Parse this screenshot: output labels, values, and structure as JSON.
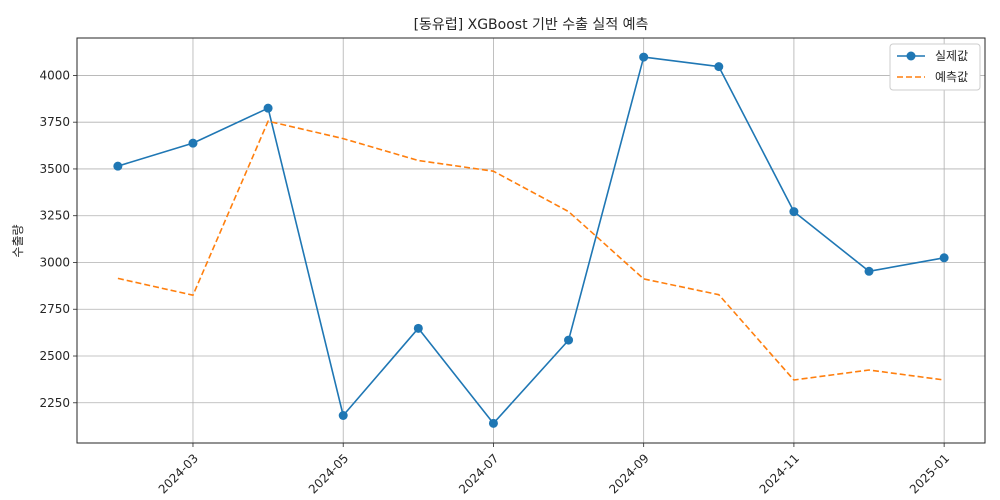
{
  "chart_data": {
    "type": "line",
    "title": "[동유럽] XGBoost 기반 수출 실적 예측",
    "xlabel": "",
    "ylabel": "수출량",
    "x": [
      "2024-02",
      "2024-03",
      "2024-04",
      "2024-05",
      "2024-06",
      "2024-07",
      "2024-08",
      "2024-09",
      "2024-10",
      "2024-11",
      "2024-12",
      "2025-01"
    ],
    "x_ticks": [
      "2024-03",
      "2024-05",
      "2024-07",
      "2024-09",
      "2024-11",
      "2025-01"
    ],
    "y_ticks": [
      2250,
      2500,
      2750,
      3000,
      3250,
      3500,
      3750,
      4000
    ],
    "ylim": [
      2035,
      4200
    ],
    "grid": true,
    "legend_position": "top-right",
    "series": [
      {
        "name": "실제값",
        "style": "solid-with-markers",
        "color": "#1f77b4",
        "values": [
          3515,
          3638,
          3825,
          2182,
          2648,
          2140,
          2585,
          4098,
          4047,
          3272,
          2953,
          3025
        ]
      },
      {
        "name": "예측값",
        "style": "dashed",
        "color": "#ff7f0e",
        "values": [
          2915,
          2825,
          3755,
          3662,
          3545,
          3488,
          3272,
          2912,
          2828,
          2372,
          2425,
          2372
        ]
      }
    ]
  }
}
